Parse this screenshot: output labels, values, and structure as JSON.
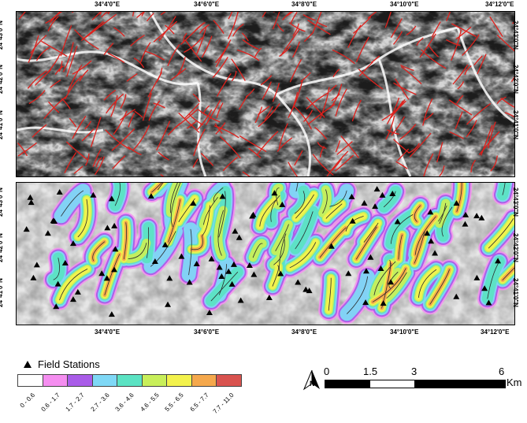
{
  "top_coords": [
    "34°4'0\"E",
    "34°6'0\"E",
    "34°8'0\"E",
    "34°10'0\"E",
    "34°12'0\"E"
  ],
  "bottom_coords": [
    "34°4'0\"E",
    "34°6'0\"E",
    "34°8'0\"E",
    "34°10'0\"E",
    "34°12'0\"E"
  ],
  "top_panel_lat": [
    "24°43'0\"N",
    "24°42'0\"N",
    "24°41'0\"N"
  ],
  "bottom_panel_lat": [
    "24°43'0\"N",
    "24°42'0\"N",
    "24°41'0\"N"
  ],
  "legend": {
    "stations_label": "Field Stations",
    "classes": [
      {
        "label": "0 - 0.6",
        "color": "#ffffff"
      },
      {
        "label": "0.6 - 1.7",
        "color": "#f58ef0"
      },
      {
        "label": "1.7 - 2.7",
        "color": "#a95ce8"
      },
      {
        "label": "2.7 - 3.6",
        "color": "#7fd8f6"
      },
      {
        "label": "3.6 - 4.6",
        "color": "#5be3c3"
      },
      {
        "label": "4.6 - 5.5",
        "color": "#c8ef5a"
      },
      {
        "label": "5.5 - 6.5",
        "color": "#f3f24c"
      },
      {
        "label": "6.5 - 7.7",
        "color": "#f5a84c"
      },
      {
        "label": "7.7 - 11.0",
        "color": "#d9534f"
      }
    ]
  },
  "scale_bar": {
    "labels": [
      "0",
      "1.5",
      "3",
      "6"
    ],
    "unit": "Km"
  },
  "colors": {
    "lineament": "#e0201b",
    "station": "#000000"
  }
}
